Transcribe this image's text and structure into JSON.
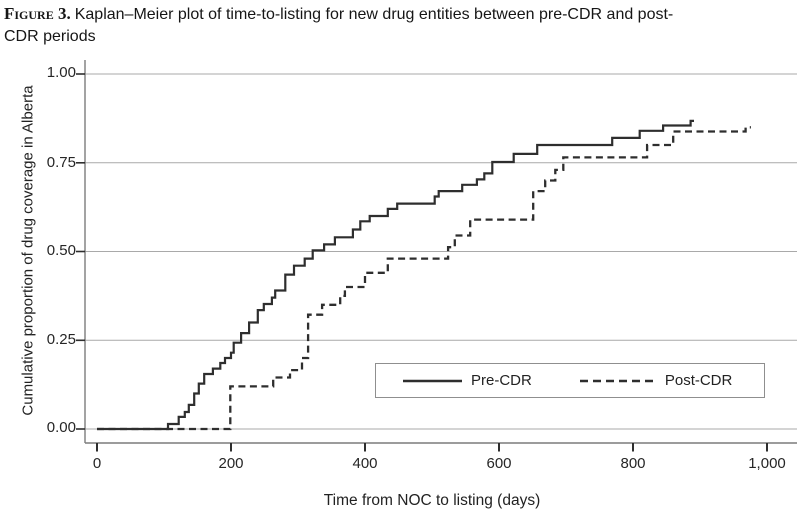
{
  "figure": {
    "label": "Figure 3.",
    "title_line_1": "Kaplan–Meier plot of time-to-listing for new drug entities between pre-CDR and post-",
    "title_line_2": "CDR periods"
  },
  "chart_data": {
    "type": "line",
    "subtype": "kaplan-meier-step",
    "title": "Kaplan–Meier plot of time-to-listing for new drug entities between pre-CDR and post-CDR periods",
    "xlabel": "Time from NOC to listing (days)",
    "ylabel": "Cumulative proportion of drug coverage in Alberta",
    "xlim": [
      0,
      1000
    ],
    "ylim": [
      0.0,
      1.0
    ],
    "grid": "horizontal",
    "x_ticks": [
      0,
      200,
      400,
      600,
      800,
      1000
    ],
    "x_tick_labels": [
      "0",
      "200",
      "400",
      "600",
      "800",
      "1,000"
    ],
    "y_ticks": [
      0,
      0.25,
      0.5,
      0.75,
      1.0
    ],
    "y_tick_labels_top_to_bottom": [
      "1.00",
      "0.75",
      "0.50",
      "0.25",
      "0.00"
    ],
    "legend": {
      "position": "inside-lower-right",
      "entries": [
        {
          "label": "Pre-CDR",
          "style": "solid"
        },
        {
          "label": "Post-CDR",
          "style": "dashed"
        }
      ]
    },
    "series": [
      {
        "name": "Pre-CDR",
        "style": "solid",
        "color": "#2e2e2e",
        "width": 2.2,
        "dash": null,
        "end_day": 891,
        "steps": [
          [
            0,
            0
          ],
          [
            106,
            0.014
          ],
          [
            122,
            0.034
          ],
          [
            131,
            0.048
          ],
          [
            137,
            0.068
          ],
          [
            145,
            0.1
          ],
          [
            152,
            0.128
          ],
          [
            160,
            0.155
          ],
          [
            173,
            0.17
          ],
          [
            184,
            0.186
          ],
          [
            191,
            0.2
          ],
          [
            200,
            0.215
          ],
          [
            204,
            0.243
          ],
          [
            215,
            0.27
          ],
          [
            227,
            0.3
          ],
          [
            240,
            0.335
          ],
          [
            249,
            0.352
          ],
          [
            261,
            0.37
          ],
          [
            266,
            0.39
          ],
          [
            281,
            0.435
          ],
          [
            294,
            0.46
          ],
          [
            310,
            0.48
          ],
          [
            322,
            0.503
          ],
          [
            339,
            0.52
          ],
          [
            355,
            0.54
          ],
          [
            382,
            0.562
          ],
          [
            393,
            0.585
          ],
          [
            407,
            0.6
          ],
          [
            434,
            0.62
          ],
          [
            448,
            0.635
          ],
          [
            504,
            0.655
          ],
          [
            510,
            0.67
          ],
          [
            545,
            0.688
          ],
          [
            567,
            0.703
          ],
          [
            578,
            0.72
          ],
          [
            590,
            0.752
          ],
          [
            622,
            0.775
          ],
          [
            657,
            0.8
          ],
          [
            769,
            0.82
          ],
          [
            810,
            0.84
          ],
          [
            845,
            0.855
          ],
          [
            886,
            0.868
          ]
        ]
      },
      {
        "name": "Post-CDR",
        "style": "dashed",
        "color": "#2e2e2e",
        "width": 2.3,
        "dash": "7 4.5",
        "end_day": 976,
        "steps": [
          [
            0,
            0
          ],
          [
            199,
            0.12
          ],
          [
            263,
            0.145
          ],
          [
            288,
            0.166
          ],
          [
            306,
            0.2
          ],
          [
            315,
            0.322
          ],
          [
            336,
            0.35
          ],
          [
            363,
            0.375
          ],
          [
            370,
            0.4
          ],
          [
            400,
            0.44
          ],
          [
            434,
            0.48
          ],
          [
            524,
            0.512
          ],
          [
            534,
            0.545
          ],
          [
            557,
            0.59
          ],
          [
            651,
            0.67
          ],
          [
            669,
            0.7
          ],
          [
            684,
            0.73
          ],
          [
            696,
            0.765
          ],
          [
            821,
            0.8
          ],
          [
            860,
            0.838
          ],
          [
            968,
            0.85
          ]
        ]
      }
    ]
  }
}
